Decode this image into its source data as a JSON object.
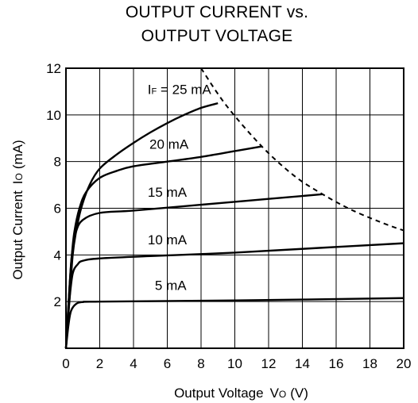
{
  "title_line1": "OUTPUT CURRENT vs.",
  "title_line2": "OUTPUT VOLTAGE",
  "chart_data": {
    "type": "line",
    "title": "OUTPUT CURRENT vs. OUTPUT VOLTAGE",
    "xlabel": "Output Voltage",
    "xlabel_symbol": "V",
    "xlabel_subscript": "O",
    "xlabel_unit": "(V)",
    "ylabel": "Output Current",
    "ylabel_symbol": "I",
    "ylabel_subscript": "O",
    "ylabel_unit": "(mA)",
    "xlim": [
      0,
      20
    ],
    "ylim": [
      0,
      12
    ],
    "xticks": [
      "0",
      "2",
      "4",
      "6",
      "8",
      "10",
      "12",
      "14",
      "16",
      "18",
      "20"
    ],
    "yticks": [
      "2",
      "4",
      "6",
      "8",
      "10",
      "12"
    ],
    "grid": true,
    "series": [
      {
        "name": "25 mA",
        "label_prefix": "I",
        "label_sub": "F",
        "label_eq": " = ",
        "points": [
          [
            0,
            0
          ],
          [
            0.2,
            2.0
          ],
          [
            0.4,
            4.0
          ],
          [
            0.6,
            5.0
          ],
          [
            0.9,
            6.0
          ],
          [
            1.4,
            7.0
          ],
          [
            2.0,
            7.7
          ],
          [
            3.0,
            8.3
          ],
          [
            4.0,
            8.8
          ],
          [
            5.0,
            9.25
          ],
          [
            6.0,
            9.65
          ],
          [
            7.0,
            10.0
          ],
          [
            8.0,
            10.3
          ],
          [
            9.0,
            10.5
          ]
        ]
      },
      {
        "name": "20 mA",
        "points": [
          [
            0,
            0
          ],
          [
            0.2,
            2.5
          ],
          [
            0.35,
            4.0
          ],
          [
            0.5,
            5.0
          ],
          [
            0.8,
            6.0
          ],
          [
            1.2,
            6.7
          ],
          [
            2.0,
            7.3
          ],
          [
            3.0,
            7.6
          ],
          [
            4.0,
            7.8
          ],
          [
            6.0,
            8.0
          ],
          [
            8.0,
            8.2
          ],
          [
            10.0,
            8.45
          ],
          [
            11.6,
            8.65
          ]
        ]
      },
      {
        "name": "15 mA",
        "points": [
          [
            0,
            0
          ],
          [
            0.2,
            2.5
          ],
          [
            0.35,
            4.0
          ],
          [
            0.6,
            5.0
          ],
          [
            1.0,
            5.5
          ],
          [
            2.0,
            5.8
          ],
          [
            4.0,
            5.9
          ],
          [
            8.0,
            6.15
          ],
          [
            12.0,
            6.4
          ],
          [
            15.2,
            6.6
          ]
        ]
      },
      {
        "name": "10 mA",
        "points": [
          [
            0,
            0
          ],
          [
            0.2,
            2.0
          ],
          [
            0.4,
            3.2
          ],
          [
            0.7,
            3.6
          ],
          [
            1.0,
            3.75
          ],
          [
            2.0,
            3.85
          ],
          [
            5.0,
            3.95
          ],
          [
            10.0,
            4.1
          ],
          [
            15.0,
            4.3
          ],
          [
            20.0,
            4.5
          ]
        ]
      },
      {
        "name": "5 mA",
        "points": [
          [
            0,
            0
          ],
          [
            0.15,
            1.0
          ],
          [
            0.3,
            1.6
          ],
          [
            0.6,
            1.9
          ],
          [
            1.0,
            1.98
          ],
          [
            2.0,
            2.0
          ],
          [
            10.0,
            2.05
          ],
          [
            20.0,
            2.15
          ]
        ]
      },
      {
        "name": "",
        "style": "dashed",
        "points": [
          [
            8.0,
            12.0
          ],
          [
            9.5,
            10.4
          ],
          [
            11.6,
            8.65
          ],
          [
            13.5,
            7.4
          ],
          [
            15.2,
            6.6
          ],
          [
            17.0,
            5.9
          ],
          [
            19.0,
            5.3
          ],
          [
            20.0,
            5.05
          ]
        ]
      }
    ],
    "annotations": [
      {
        "text": "25 mA",
        "x": 8.6,
        "y": 10.9
      },
      {
        "text": "20 mA",
        "x": 6.1,
        "y": 8.55
      },
      {
        "text": "15 mA",
        "x": 6.0,
        "y": 6.5
      },
      {
        "text": "10 mA",
        "x": 6.0,
        "y": 4.45
      },
      {
        "text": "5 mA",
        "x": 6.2,
        "y": 2.5
      }
    ]
  }
}
